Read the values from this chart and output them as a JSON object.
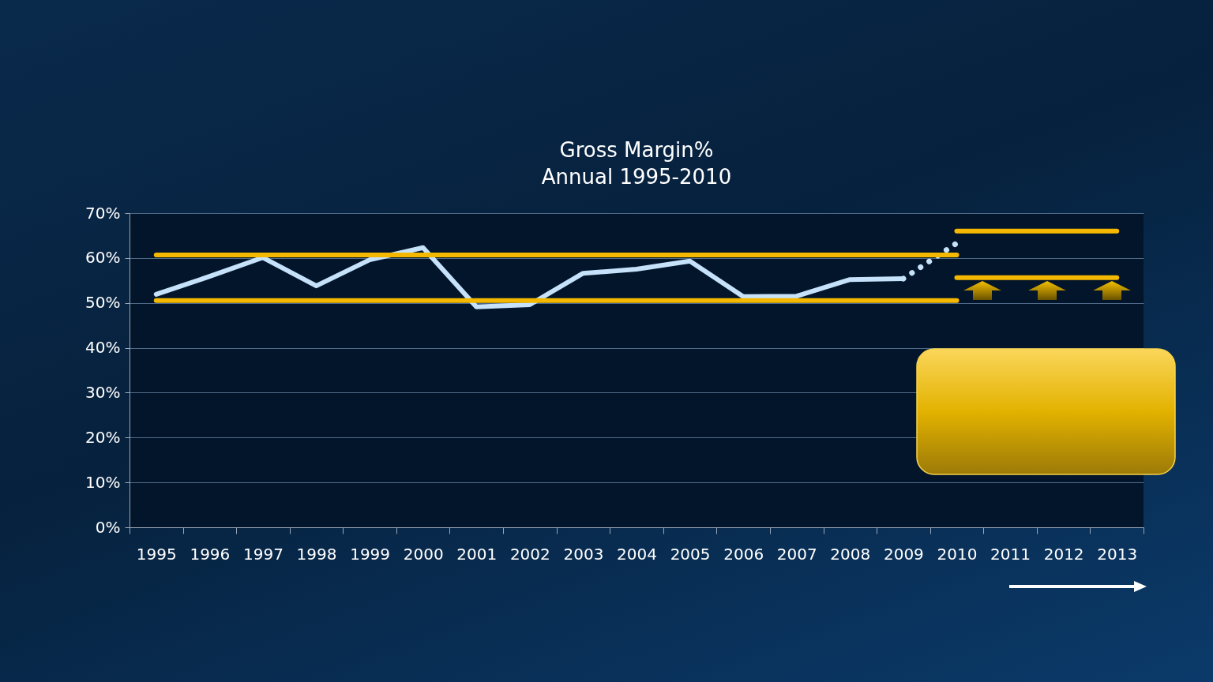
{
  "chart_data": {
    "type": "line",
    "title": "Gross Margin%",
    "subtitle": "Annual 1995-2010",
    "categories": [
      "1995",
      "1996",
      "1997",
      "1998",
      "1999",
      "2000",
      "2001",
      "2002",
      "2003",
      "2004",
      "2005",
      "2006",
      "2007",
      "2008",
      "2009",
      "2010",
      "2011",
      "2012",
      "2013"
    ],
    "series": [
      {
        "color": "#c5e2fa",
        "values": [
          51.9,
          55.9,
          60.1,
          53.8,
          59.6,
          62.3,
          49.1,
          49.6,
          56.6,
          57.5,
          59.3,
          51.4,
          51.5,
          55.2,
          55.4,
          null,
          null,
          null,
          null
        ]
      },
      {
        "color": "#c5e2fa",
        "line_style": "dotted",
        "values": [
          null,
          null,
          null,
          null,
          null,
          null,
          null,
          null,
          null,
          null,
          null,
          null,
          null,
          null,
          55.4,
          63.3,
          null,
          null,
          null
        ]
      },
      {
        "color": "#f5b800",
        "values": [
          60.7,
          60.7,
          60.7,
          60.7,
          60.7,
          60.7,
          60.7,
          60.7,
          60.7,
          60.7,
          60.7,
          60.7,
          60.7,
          60.7,
          60.7,
          60.7,
          null,
          null,
          null
        ]
      },
      {
        "color": "#f5b800",
        "values": [
          50.5,
          50.5,
          50.5,
          50.5,
          50.5,
          50.5,
          50.5,
          50.5,
          50.5,
          50.5,
          50.5,
          50.5,
          50.5,
          50.5,
          50.5,
          50.5,
          null,
          null,
          null
        ]
      },
      {
        "color": "#f5b800",
        "values": [
          null,
          null,
          null,
          null,
          null,
          null,
          null,
          null,
          null,
          null,
          null,
          null,
          null,
          null,
          null,
          66.0,
          66.0,
          66.0,
          66.0
        ]
      },
      {
        "color": "#f5b800",
        "values": [
          null,
          null,
          null,
          null,
          null,
          null,
          null,
          null,
          null,
          null,
          null,
          null,
          null,
          null,
          null,
          55.6,
          55.6,
          55.6,
          55.6
        ]
      }
    ],
    "ylim": [
      0,
      70
    ],
    "yticks": [
      {
        "value": 0,
        "label": "0%"
      },
      {
        "value": 10,
        "label": "10%"
      },
      {
        "value": 20,
        "label": "20%"
      },
      {
        "value": 30,
        "label": "30%"
      },
      {
        "value": 40,
        "label": "40%"
      },
      {
        "value": 50,
        "label": "50%"
      },
      {
        "value": 60,
        "label": "60%"
      },
      {
        "value": 70,
        "label": "70%"
      }
    ],
    "grid": "y",
    "marker": "none"
  }
}
